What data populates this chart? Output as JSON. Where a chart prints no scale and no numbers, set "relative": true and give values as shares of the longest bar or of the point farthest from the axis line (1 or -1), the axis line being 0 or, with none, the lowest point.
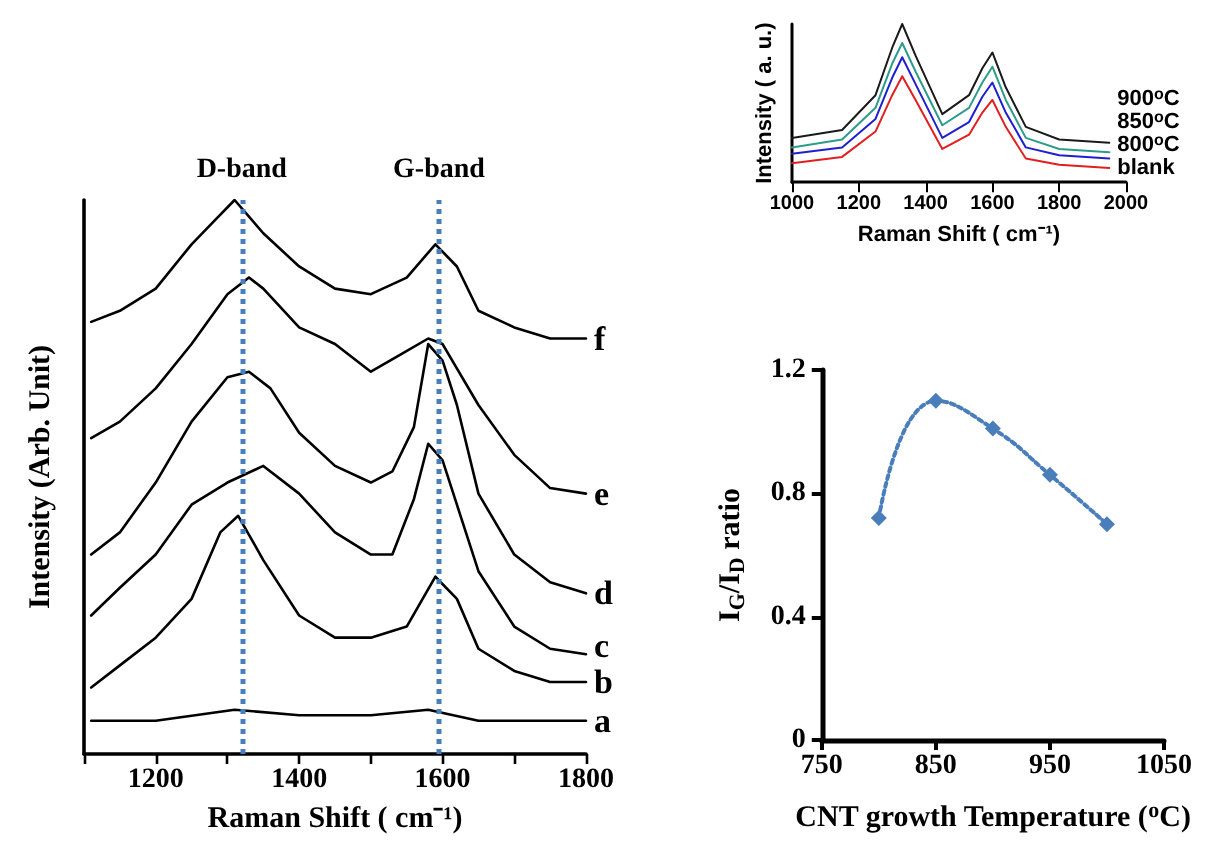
{
  "chart_data": [
    {
      "type": "line",
      "relative": true,
      "xlabel": "Raman Shift ( cm⁻¹)",
      "ylabel": "Intensity (Arb. Unit)",
      "xlim": [
        1100,
        1800
      ],
      "xticks": [
        {
          "value": 1100,
          "label": null
        },
        1200,
        {
          "value": 1300,
          "label": null
        },
        1400,
        {
          "value": 1500,
          "label": null
        },
        1600,
        {
          "value": 1700,
          "label": null
        },
        1800
      ],
      "marker": "none",
      "line_style": "solid",
      "grid": false,
      "ref_lines": [
        {
          "axis": "x",
          "value": 1320,
          "label": "D-band",
          "color": "#4a7ebb",
          "line_style": "dotted"
        },
        {
          "axis": "x",
          "value": 1595,
          "label": "G-band",
          "color": "#4a7ebb",
          "line_style": "dotted"
        }
      ],
      "series": [
        {
          "name": "f",
          "color": "#000000",
          "x": [
            1110,
            1150,
            1200,
            1250,
            1280,
            1310,
            1350,
            1400,
            1450,
            1500,
            1550,
            1590,
            1620,
            1650,
            1700,
            1750,
            1800
          ],
          "values": [
            0.78,
            0.8,
            0.84,
            0.92,
            0.96,
            1,
            0.94,
            0.88,
            0.84,
            0.83,
            0.86,
            0.92,
            0.88,
            0.8,
            0.77,
            0.75,
            0.75
          ]
        },
        {
          "name": "e",
          "color": "#000000",
          "x": [
            1110,
            1150,
            1200,
            1250,
            1300,
            1330,
            1350,
            1400,
            1450,
            1500,
            1540,
            1580,
            1600,
            1650,
            1700,
            1750,
            1800
          ],
          "values": [
            0.57,
            0.6,
            0.66,
            0.74,
            0.83,
            0.86,
            0.84,
            0.77,
            0.74,
            0.69,
            0.72,
            0.75,
            0.74,
            0.63,
            0.54,
            0.48,
            0.47
          ]
        },
        {
          "name": "d",
          "color": "#000000",
          "x": [
            1110,
            1150,
            1200,
            1250,
            1300,
            1330,
            1360,
            1400,
            1450,
            1500,
            1530,
            1560,
            1580,
            1600,
            1620,
            1650,
            1700,
            1750,
            1800
          ],
          "values": [
            0.36,
            0.4,
            0.49,
            0.6,
            0.68,
            0.69,
            0.66,
            0.58,
            0.52,
            0.49,
            0.51,
            0.59,
            0.74,
            0.71,
            0.63,
            0.47,
            0.36,
            0.31,
            0.29
          ]
        },
        {
          "name": "c",
          "color": "#000000",
          "x": [
            1110,
            1150,
            1200,
            1250,
            1300,
            1350,
            1400,
            1450,
            1500,
            1530,
            1560,
            1580,
            1600,
            1620,
            1650,
            1700,
            1750,
            1800
          ],
          "values": [
            0.25,
            0.3,
            0.36,
            0.45,
            0.49,
            0.52,
            0.47,
            0.4,
            0.36,
            0.36,
            0.46,
            0.56,
            0.53,
            0.45,
            0.33,
            0.23,
            0.19,
            0.18
          ]
        },
        {
          "name": "b",
          "color": "#000000",
          "x": [
            1110,
            1150,
            1200,
            1250,
            1290,
            1315,
            1350,
            1400,
            1450,
            1500,
            1550,
            1590,
            1620,
            1650,
            1700,
            1750,
            1800
          ],
          "values": [
            0.12,
            0.16,
            0.21,
            0.28,
            0.4,
            0.43,
            0.35,
            0.25,
            0.21,
            0.21,
            0.23,
            0.32,
            0.28,
            0.19,
            0.15,
            0.13,
            0.13
          ]
        },
        {
          "name": "a",
          "color": "#000000",
          "x": [
            1110,
            1200,
            1310,
            1400,
            1500,
            1580,
            1650,
            1800
          ],
          "values": [
            0.06,
            0.06,
            0.08,
            0.07,
            0.07,
            0.08,
            0.06,
            0.06
          ]
        }
      ]
    },
    {
      "type": "line",
      "relative": true,
      "xlabel": "Raman Shift ( cm⁻¹)",
      "ylabel": "Intensity ( a. u.)",
      "xlim": [
        1000,
        2000
      ],
      "xticks": [
        1000,
        1200,
        1400,
        1600,
        1800,
        2000
      ],
      "marker": "none",
      "line_style": "solid",
      "grid": false,
      "series": [
        {
          "name": "900$^{o}$C",
          "color": "#1a1a1a",
          "x": [
            1000,
            1150,
            1250,
            1300,
            1330,
            1370,
            1450,
            1530,
            1570,
            1600,
            1640,
            1700,
            1800,
            1950
          ],
          "values": [
            0.28,
            0.33,
            0.55,
            0.85,
            1,
            0.8,
            0.43,
            0.55,
            0.72,
            0.82,
            0.6,
            0.35,
            0.27,
            0.25
          ]
        },
        {
          "name": "850$^{o}$C",
          "color": "#2e9c8a",
          "x": [
            1000,
            1150,
            1250,
            1300,
            1330,
            1370,
            1450,
            1530,
            1570,
            1600,
            1640,
            1700,
            1800,
            1950
          ],
          "values": [
            0.22,
            0.27,
            0.47,
            0.75,
            0.88,
            0.7,
            0.36,
            0.47,
            0.63,
            0.73,
            0.52,
            0.28,
            0.21,
            0.19
          ]
        },
        {
          "name": "800$^{o}$C",
          "color": "#1f1fd0",
          "x": [
            1000,
            1150,
            1250,
            1300,
            1330,
            1370,
            1450,
            1530,
            1570,
            1600,
            1640,
            1700,
            1800,
            1950
          ],
          "values": [
            0.18,
            0.22,
            0.4,
            0.66,
            0.79,
            0.62,
            0.28,
            0.38,
            0.54,
            0.63,
            0.44,
            0.22,
            0.17,
            0.15
          ]
        },
        {
          "name": "blank",
          "color": "#e02020",
          "x": [
            1000,
            1150,
            1250,
            1300,
            1330,
            1370,
            1450,
            1530,
            1570,
            1600,
            1640,
            1700,
            1800,
            1950
          ],
          "values": [
            0.12,
            0.16,
            0.32,
            0.55,
            0.67,
            0.52,
            0.21,
            0.3,
            0.44,
            0.52,
            0.35,
            0.15,
            0.11,
            0.09
          ]
        }
      ]
    },
    {
      "type": "line",
      "xlabel": "CNT growth Temperature ($^{o}$C)",
      "ylabel": "I$_{G}$/I$_{D}$ ratio",
      "xlim": [
        750,
        1050
      ],
      "xticks": [
        750,
        850,
        950,
        1050
      ],
      "ylim": [
        0,
        1.2
      ],
      "yticks": [
        0,
        0.4,
        0.8,
        1.2
      ],
      "marker": "diamond",
      "line_style": "dotted",
      "grid": false,
      "x": [
        800,
        850,
        900,
        950,
        1000
      ],
      "series": [
        {
          "color": "#4a7ebb",
          "values": [
            0.72,
            1.1,
            1.01,
            0.86,
            0.7
          ]
        }
      ]
    }
  ]
}
